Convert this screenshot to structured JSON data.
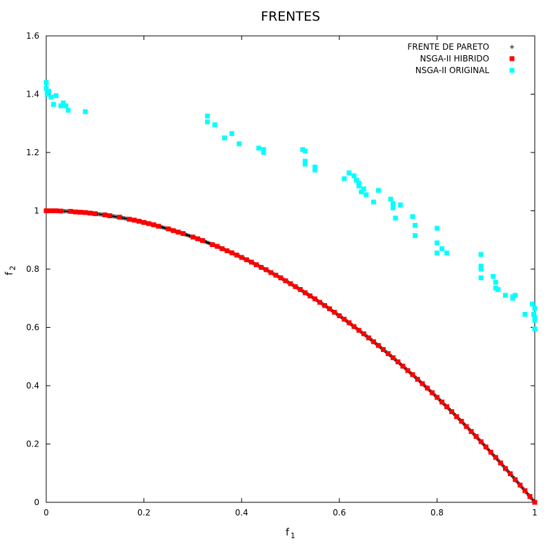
{
  "chart_data": {
    "type": "scatter",
    "title": "FRENTES",
    "xlabel": "f",
    "xlabel_sub": "1",
    "ylabel": "f",
    "ylabel_sub": "2",
    "xlim": [
      0,
      1
    ],
    "ylim": [
      0,
      1.6
    ],
    "x_ticks": [
      0,
      0.2,
      0.4,
      0.6,
      0.8,
      1
    ],
    "x_tick_labels": [
      "0",
      "0.2",
      "0.4",
      "0.6",
      "0.8",
      "1"
    ],
    "y_ticks": [
      0,
      0.2,
      0.4,
      0.6,
      0.8,
      1,
      1.2,
      1.4,
      1.6
    ],
    "y_tick_labels": [
      "0",
      "0.2",
      "0.4",
      "0.6",
      "0.8",
      "1",
      "1.2",
      "1.4",
      "1.6"
    ],
    "grid": false,
    "legend_position": "top-right",
    "series": [
      {
        "name": "FRENTE DE PARETO",
        "marker": "plus",
        "color": "#000000",
        "curve": "y = 1 - x^2",
        "x_range": [
          0,
          1
        ],
        "n_points": 400
      },
      {
        "name": "NSGA-II HIBRIDO",
        "marker": "square",
        "color": "#ff0000",
        "x": [
          0.0,
          0.01,
          0.02,
          0.03,
          0.05,
          0.06,
          0.07,
          0.08,
          0.09,
          0.1,
          0.12,
          0.13,
          0.15,
          0.17,
          0.18,
          0.19,
          0.2,
          0.21,
          0.22,
          0.23,
          0.25,
          0.26,
          0.27,
          0.28,
          0.3,
          0.31,
          0.32,
          0.34,
          0.35,
          0.36,
          0.37,
          0.38,
          0.39,
          0.4,
          0.41,
          0.42,
          0.43,
          0.44,
          0.45,
          0.46,
          0.47,
          0.48,
          0.49,
          0.5,
          0.51,
          0.52,
          0.53,
          0.54,
          0.55,
          0.56,
          0.57,
          0.58,
          0.59,
          0.6,
          0.61,
          0.62,
          0.63,
          0.64,
          0.65,
          0.66,
          0.67,
          0.68,
          0.69,
          0.7,
          0.71,
          0.72,
          0.73,
          0.74,
          0.75,
          0.76,
          0.77,
          0.78,
          0.79,
          0.8,
          0.81,
          0.82,
          0.83,
          0.84,
          0.85,
          0.86,
          0.87,
          0.88,
          0.89,
          0.9,
          0.91,
          0.92,
          0.93,
          0.94,
          0.95,
          0.96,
          0.97,
          0.98,
          0.99,
          1.0
        ],
        "y": [
          1.0,
          1.0,
          1.0,
          0.999,
          0.998,
          0.996,
          0.995,
          0.994,
          0.992,
          0.99,
          0.986,
          0.983,
          0.978,
          0.971,
          0.968,
          0.964,
          0.96,
          0.956,
          0.952,
          0.947,
          0.938,
          0.932,
          0.927,
          0.922,
          0.91,
          0.904,
          0.898,
          0.884,
          0.878,
          0.87,
          0.863,
          0.856,
          0.848,
          0.84,
          0.832,
          0.824,
          0.815,
          0.806,
          0.798,
          0.788,
          0.779,
          0.77,
          0.76,
          0.75,
          0.74,
          0.73,
          0.719,
          0.708,
          0.698,
          0.686,
          0.675,
          0.664,
          0.652,
          0.64,
          0.628,
          0.616,
          0.603,
          0.59,
          0.578,
          0.564,
          0.551,
          0.538,
          0.524,
          0.51,
          0.496,
          0.482,
          0.467,
          0.452,
          0.438,
          0.422,
          0.407,
          0.392,
          0.376,
          0.36,
          0.344,
          0.328,
          0.311,
          0.294,
          0.278,
          0.26,
          0.243,
          0.226,
          0.208,
          0.19,
          0.172,
          0.154,
          0.135,
          0.116,
          0.098,
          0.078,
          0.059,
          0.04,
          0.02,
          0.0
        ]
      },
      {
        "name": "NSGA-II ORIGINAL",
        "marker": "square",
        "color": "#00ffff",
        "x": [
          0.0,
          0.0,
          0.002,
          0.005,
          0.01,
          0.015,
          0.02,
          0.03,
          0.035,
          0.04,
          0.045,
          0.08,
          0.33,
          0.33,
          0.345,
          0.365,
          0.38,
          0.395,
          0.435,
          0.445,
          0.445,
          0.525,
          0.53,
          0.53,
          0.53,
          0.55,
          0.55,
          0.61,
          0.62,
          0.63,
          0.635,
          0.64,
          0.64,
          0.645,
          0.65,
          0.655,
          0.67,
          0.68,
          0.705,
          0.71,
          0.71,
          0.715,
          0.725,
          0.75,
          0.755,
          0.755,
          0.8,
          0.8,
          0.8,
          0.81,
          0.82,
          0.89,
          0.89,
          0.89,
          0.89,
          0.915,
          0.92,
          0.92,
          0.925,
          0.94,
          0.955,
          0.955,
          0.96,
          0.98,
          0.995,
          0.998,
          1.0,
          1.0,
          1.0,
          1.0
        ],
        "y": [
          1.44,
          1.42,
          1.4,
          1.41,
          1.39,
          1.365,
          1.395,
          1.36,
          1.37,
          1.36,
          1.345,
          1.34,
          1.325,
          1.305,
          1.295,
          1.25,
          1.265,
          1.23,
          1.215,
          1.21,
          1.2,
          1.21,
          1.17,
          1.16,
          1.205,
          1.15,
          1.14,
          1.11,
          1.13,
          1.12,
          1.105,
          1.095,
          1.085,
          1.065,
          1.075,
          1.055,
          1.03,
          1.07,
          1.04,
          1.025,
          1.01,
          0.975,
          1.02,
          0.98,
          0.95,
          0.915,
          0.94,
          0.89,
          0.855,
          0.87,
          0.855,
          0.85,
          0.81,
          0.8,
          0.77,
          0.775,
          0.755,
          0.735,
          0.73,
          0.71,
          0.7,
          0.705,
          0.71,
          0.645,
          0.68,
          0.645,
          0.665,
          0.635,
          0.625,
          0.595
        ]
      }
    ]
  }
}
